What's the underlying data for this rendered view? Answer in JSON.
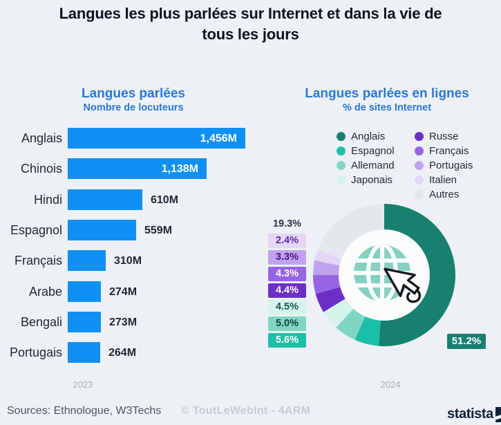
{
  "header": {
    "title_lines": [
      "Langues les plus parlées sur Internet et dans la vie de",
      "tous les jours"
    ]
  },
  "chart_data": [
    {
      "type": "bar",
      "orientation": "horizontal",
      "title": "Langues parlées",
      "subtitle": "Nombre de locuteurs",
      "year": "2023",
      "bar_color": "#0E90F4",
      "categories": [
        "Anglais",
        "Chinois",
        "Hindi",
        "Espagnol",
        "Français",
        "Arabe",
        "Bengali",
        "Portugais"
      ],
      "values": [
        1456,
        1138,
        610,
        559,
        310,
        274,
        273,
        264
      ],
      "value_labels": [
        "1,456M",
        "1,138M",
        "610M",
        "559M",
        "310M",
        "274M",
        "273M",
        "264M"
      ],
      "xlim": [
        0,
        1456
      ],
      "unit": "M"
    },
    {
      "type": "pie",
      "donut": true,
      "title": "Langues parlées en lignes",
      "subtitle": "% de sites Internet",
      "year": "2024",
      "slices": [
        {
          "name": "Anglais",
          "pct": 51.2,
          "color": "#17806F"
        },
        {
          "name": "Espagnol",
          "pct": 5.6,
          "color": "#1CBFA6"
        },
        {
          "name": "Allemand",
          "pct": 5.0,
          "color": "#7FD6C3"
        },
        {
          "name": "Japonais",
          "pct": 4.5,
          "color": "#D6F3EB"
        },
        {
          "name": "Russe",
          "pct": 4.4,
          "color": "#6B2FC7"
        },
        {
          "name": "Français",
          "pct": 4.3,
          "color": "#9765E3"
        },
        {
          "name": "Portugais",
          "pct": 3.3,
          "color": "#BFA3EC"
        },
        {
          "name": "Italien",
          "pct": 2.4,
          "color": "#E3D6F7"
        },
        {
          "name": "Autres",
          "pct": 19.3,
          "color": "#E4E8ED"
        }
      ],
      "legend_columns": [
        [
          {
            "name": "Anglais",
            "color": "#17806F"
          },
          {
            "name": "Espagnol",
            "color": "#1CBFA6"
          },
          {
            "name": "Allemand",
            "color": "#7FD6C3"
          },
          {
            "name": "Japonais",
            "color": "#D6F3EB"
          }
        ],
        [
          {
            "name": "Russe",
            "color": "#6B2FC7"
          },
          {
            "name": "Français",
            "color": "#9765E3"
          },
          {
            "name": "Portugais",
            "color": "#BFA3EC"
          },
          {
            "name": "Italien",
            "color": "#E3D6F7"
          },
          {
            "name": "Autres",
            "color": "#E4E8ED"
          }
        ]
      ],
      "side_labels": [
        {
          "text": "19.3%",
          "bg": "transparent",
          "fg": "#2A3240"
        },
        {
          "text": "2.4%",
          "bg": "#E3D6F7",
          "fg": "#5B2AA6"
        },
        {
          "text": "3.3%",
          "bg": "#BFA3EC",
          "fg": "#47127F"
        },
        {
          "text": "4.3%",
          "bg": "#9765E3",
          "fg": "#FFFFFF"
        },
        {
          "text": "4.4%",
          "bg": "#6B2FC7",
          "fg": "#FFFFFF"
        },
        {
          "text": "4.5%",
          "bg": "#D6F3EB",
          "fg": "#0E5B4F"
        },
        {
          "text": "5.0%",
          "bg": "#7FD6C3",
          "fg": "#12443C"
        },
        {
          "text": "5.6%",
          "bg": "#1CBFA6",
          "fg": "#FFFFFF"
        }
      ],
      "main_label": {
        "text": "51.2%",
        "bg": "#17806F",
        "fg": "#FFFFFF"
      }
    }
  ],
  "footer": {
    "sources": "Sources: Ethnologue, W3Techs",
    "watermark": "© ToutLeWebInt - 4ARM",
    "brand": "statista"
  }
}
